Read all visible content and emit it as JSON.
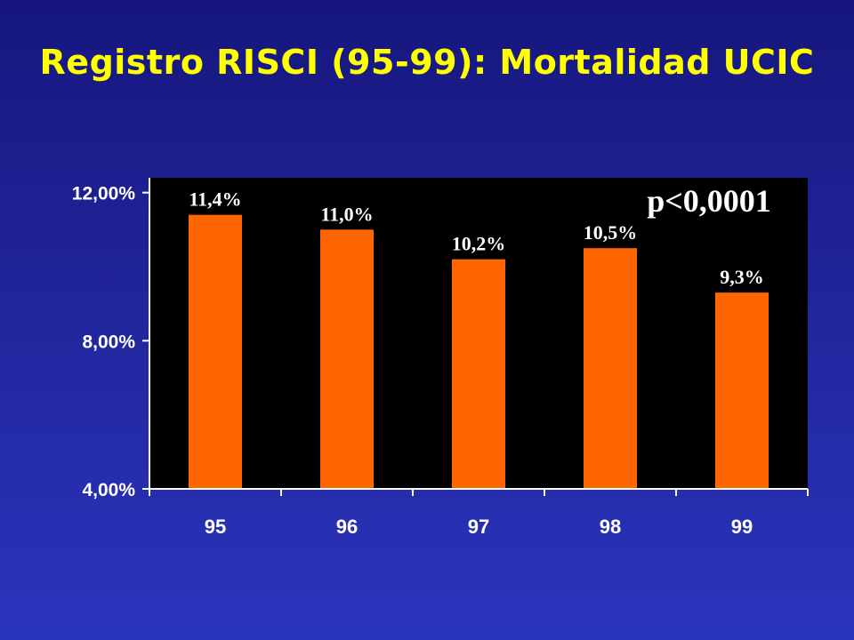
{
  "slide": {
    "title": "Registro RISCI (95-99): Mortalidad UCIC"
  },
  "chart_data": {
    "type": "bar",
    "title": "",
    "xlabel": "",
    "ylabel": "",
    "categories": [
      "95",
      "96",
      "97",
      "98",
      "99"
    ],
    "values": [
      11.4,
      11.0,
      10.2,
      10.5,
      9.3
    ],
    "data_labels": [
      "11,4%",
      "11,0%",
      "10,2%",
      "10,5%",
      "9,3%"
    ],
    "ylim": [
      4,
      12.4
    ],
    "yticks": [
      4,
      8,
      12
    ],
    "ytick_labels": [
      "4,00%",
      "8,00%",
      "12,00%"
    ],
    "annotation": "p<0,0001",
    "grid": false,
    "bar_color": "#ff6600",
    "plot_background": "#000000"
  }
}
